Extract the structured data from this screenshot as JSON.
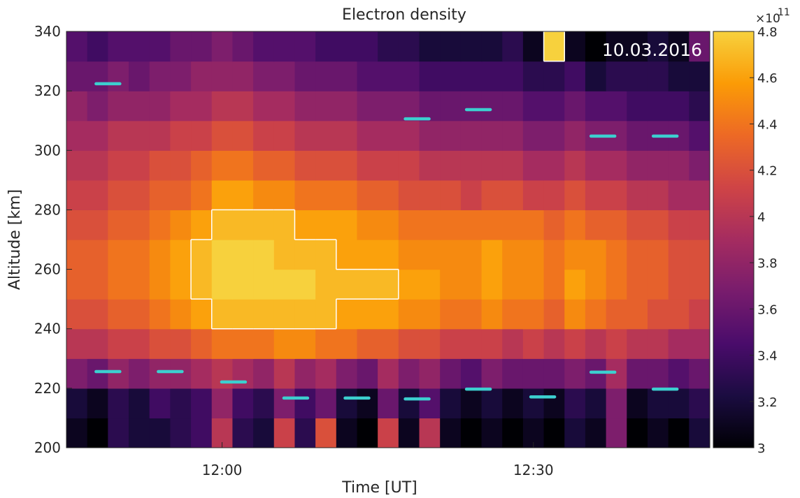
{
  "chart_data": {
    "type": "heatmap",
    "title": "Electron density",
    "xlabel": "Time [UT]",
    "ylabel": "Altitude [km]",
    "annotation": "10.03.2016",
    "colorbar_multiplier": "×10",
    "colorbar_exponent": "11",
    "colormap": "inferno",
    "clim": [
      3,
      4.8
    ],
    "cticks": [
      3,
      3.2,
      3.4,
      3.6,
      3.8,
      4,
      4.2,
      4.4,
      4.6,
      4.8
    ],
    "xlim": [
      705,
      767
    ],
    "xticks": [
      {
        "value": 720,
        "label": "12:00"
      },
      {
        "value": 750,
        "label": "12:30"
      }
    ],
    "ylim": [
      200,
      340
    ],
    "yticks": [
      200,
      220,
      240,
      260,
      280,
      300,
      320,
      340
    ],
    "x_bins": [
      705,
      707,
      709,
      711,
      713,
      715,
      717,
      719,
      721,
      723,
      725,
      727,
      729,
      731,
      733,
      735,
      737,
      739,
      741,
      743,
      745,
      747,
      749,
      751,
      753,
      755,
      757,
      759,
      761,
      763,
      765,
      767
    ],
    "y_bins": [
      200,
      210,
      220,
      230,
      240,
      250,
      260,
      270,
      280,
      290,
      300,
      310,
      320,
      330,
      340
    ],
    "z": [
      [
        3.1,
        3.0,
        3.3,
        3.2,
        3.2,
        3.3,
        3.4,
        4.0,
        3.3,
        3.2,
        4.1,
        3.3,
        4.2,
        3.1,
        3.0,
        4.1,
        3.1,
        4.0,
        3.1,
        3.0,
        3.1,
        3.0,
        3.1,
        3.0,
        3.2,
        3.1,
        3.7,
        3.0,
        3.1,
        3.0,
        3.2
      ],
      [
        3.2,
        3.1,
        3.3,
        3.2,
        3.4,
        3.3,
        3.4,
        3.8,
        3.4,
        3.3,
        3.7,
        3.4,
        3.6,
        3.2,
        3.1,
        3.6,
        3.2,
        3.5,
        3.2,
        3.1,
        3.2,
        3.1,
        3.2,
        3.1,
        3.3,
        3.2,
        3.7,
        3.1,
        3.2,
        3.2,
        3.3
      ],
      [
        3.7,
        3.6,
        3.8,
        3.7,
        3.8,
        3.8,
        3.9,
        4.0,
        3.9,
        3.8,
        4.0,
        3.8,
        3.9,
        3.7,
        3.6,
        3.9,
        3.7,
        3.8,
        3.6,
        3.5,
        3.7,
        3.6,
        3.6,
        3.6,
        3.7,
        3.6,
        3.9,
        3.6,
        3.6,
        3.5,
        3.6
      ],
      [
        4.0,
        4.0,
        4.1,
        4.1,
        4.2,
        4.2,
        4.3,
        4.4,
        4.4,
        4.4,
        4.5,
        4.5,
        4.4,
        4.4,
        4.3,
        4.3,
        4.2,
        4.2,
        4.1,
        4.1,
        4.1,
        4.0,
        4.1,
        4.0,
        4.1,
        4.0,
        4.1,
        4.0,
        4.0,
        3.9,
        3.9
      ],
      [
        4.2,
        4.2,
        4.3,
        4.3,
        4.4,
        4.5,
        4.6,
        4.7,
        4.7,
        4.7,
        4.7,
        4.7,
        4.7,
        4.6,
        4.6,
        4.6,
        4.5,
        4.5,
        4.4,
        4.4,
        4.5,
        4.4,
        4.4,
        4.3,
        4.5,
        4.4,
        4.3,
        4.3,
        4.2,
        4.2,
        4.1
      ],
      [
        4.3,
        4.3,
        4.4,
        4.4,
        4.5,
        4.6,
        4.7,
        4.8,
        4.8,
        4.8,
        4.8,
        4.8,
        4.7,
        4.7,
        4.7,
        4.7,
        4.6,
        4.6,
        4.5,
        4.5,
        4.6,
        4.5,
        4.5,
        4.4,
        4.6,
        4.5,
        4.4,
        4.3,
        4.3,
        4.2,
        4.2
      ],
      [
        4.3,
        4.3,
        4.4,
        4.4,
        4.5,
        4.6,
        4.7,
        4.8,
        4.8,
        4.8,
        4.7,
        4.7,
        4.7,
        4.6,
        4.6,
        4.6,
        4.5,
        4.5,
        4.5,
        4.5,
        4.6,
        4.5,
        4.5,
        4.4,
        4.5,
        4.5,
        4.4,
        4.3,
        4.3,
        4.2,
        4.2
      ],
      [
        4.2,
        4.2,
        4.3,
        4.3,
        4.4,
        4.5,
        4.6,
        4.7,
        4.7,
        4.7,
        4.7,
        4.6,
        4.6,
        4.6,
        4.5,
        4.5,
        4.4,
        4.4,
        4.4,
        4.4,
        4.4,
        4.4,
        4.4,
        4.3,
        4.4,
        4.3,
        4.3,
        4.2,
        4.2,
        4.1,
        4.1
      ],
      [
        4.1,
        4.1,
        4.2,
        4.2,
        4.3,
        4.3,
        4.4,
        4.6,
        4.6,
        4.5,
        4.5,
        4.4,
        4.4,
        4.4,
        4.3,
        4.3,
        4.2,
        4.2,
        4.2,
        4.1,
        4.2,
        4.2,
        4.1,
        4.1,
        4.2,
        4.1,
        4.1,
        4.0,
        4.0,
        3.9,
        3.9
      ],
      [
        4.0,
        4.0,
        4.1,
        4.1,
        4.2,
        4.2,
        4.3,
        4.4,
        4.4,
        4.3,
        4.3,
        4.2,
        4.2,
        4.2,
        4.1,
        4.1,
        4.1,
        4.0,
        4.0,
        4.0,
        4.0,
        4.0,
        3.9,
        3.9,
        4.0,
        3.9,
        3.9,
        3.8,
        3.8,
        3.8,
        3.7
      ],
      [
        3.9,
        3.9,
        4.0,
        4.0,
        4.0,
        4.1,
        4.1,
        4.2,
        4.2,
        4.1,
        4.1,
        4.0,
        4.0,
        4.0,
        3.9,
        3.9,
        3.9,
        3.8,
        3.8,
        3.8,
        3.8,
        3.8,
        3.7,
        3.7,
        3.8,
        3.7,
        3.7,
        3.6,
        3.6,
        3.6,
        3.5
      ],
      [
        3.8,
        3.7,
        3.8,
        3.8,
        3.8,
        3.9,
        3.9,
        4.0,
        4.0,
        3.9,
        3.9,
        3.8,
        3.8,
        3.8,
        3.7,
        3.7,
        3.7,
        3.6,
        3.6,
        3.6,
        3.6,
        3.6,
        3.5,
        3.5,
        3.6,
        3.5,
        3.5,
        3.4,
        3.4,
        3.4,
        3.3
      ],
      [
        3.6,
        3.6,
        3.7,
        3.6,
        3.7,
        3.7,
        3.8,
        3.8,
        3.8,
        3.7,
        3.7,
        3.6,
        3.6,
        3.6,
        3.5,
        3.5,
        3.5,
        3.4,
        3.4,
        3.4,
        3.4,
        3.4,
        3.3,
        3.3,
        3.4,
        3.2,
        3.3,
        3.3,
        3.3,
        3.2,
        3.2
      ],
      [
        3.5,
        3.4,
        3.5,
        3.5,
        3.5,
        3.6,
        3.6,
        3.7,
        3.6,
        3.5,
        3.5,
        3.5,
        3.4,
        3.4,
        3.4,
        3.3,
        3.3,
        3.2,
        3.2,
        3.2,
        3.2,
        3.3,
        3.1,
        4.8,
        3.1,
        3.0,
        3.1,
        3.1,
        3.2,
        3.1,
        3.6
      ]
    ],
    "contour": {
      "level": 4.7,
      "color": "#ffffff"
    },
    "markers": {
      "color": "#3ccfcf",
      "x": [
        709.0,
        709.0,
        715.0,
        721.1,
        727.1,
        733.0,
        738.8,
        738.8,
        744.7,
        744.7,
        750.9,
        756.7,
        756.7,
        762.7,
        762.7
      ],
      "y": [
        322.4,
        225.6,
        225.6,
        222.1,
        216.7,
        216.7,
        216.4,
        310.6,
        313.7,
        219.7,
        217.1,
        304.8,
        225.4,
        304.8,
        219.7
      ]
    }
  }
}
